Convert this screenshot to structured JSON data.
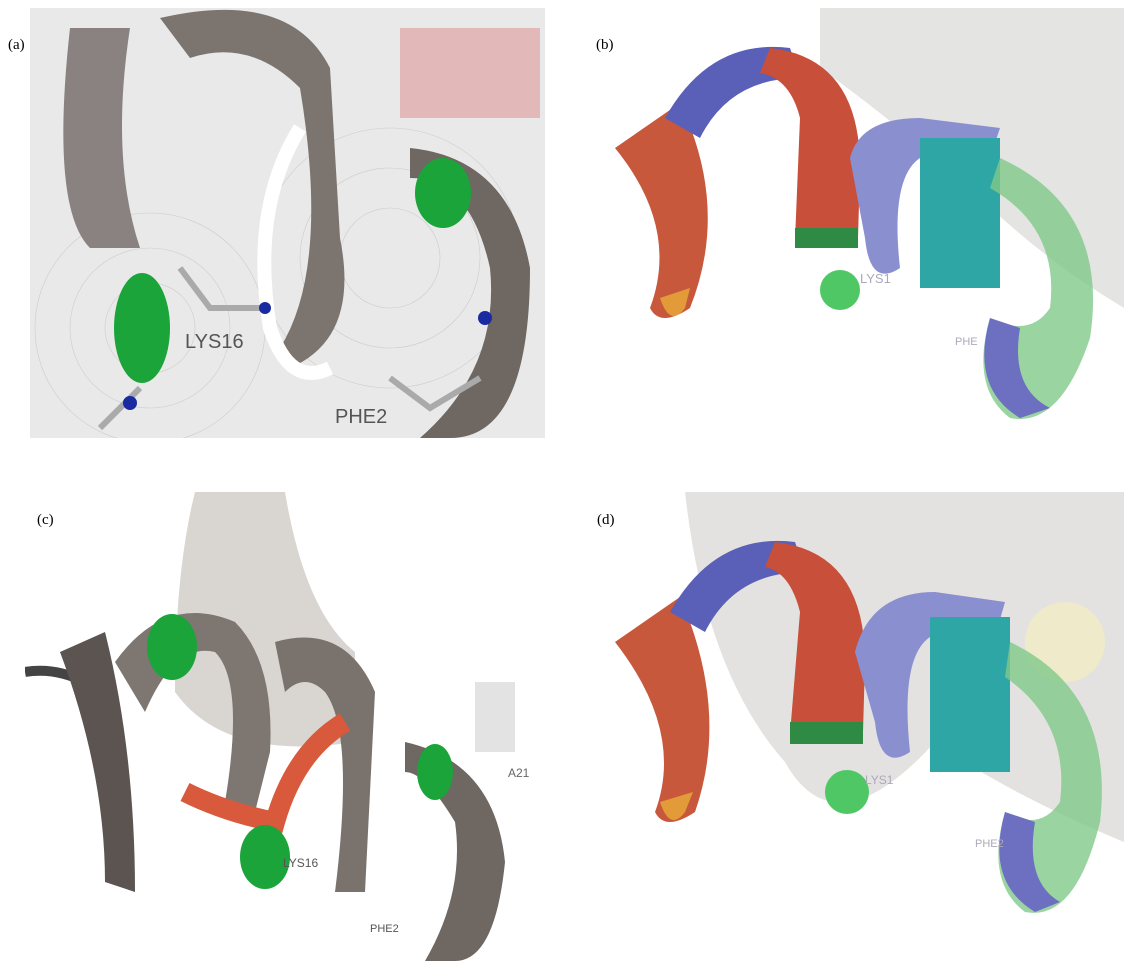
{
  "panels": [
    {
      "label": "(a)",
      "residues": [
        "LYS16",
        "PHE2"
      ]
    },
    {
      "label": "(b)",
      "residues": [
        "LYS1",
        "PHE"
      ]
    },
    {
      "label": "(c)",
      "residues": [
        "LYS16",
        "PHE2",
        "A21"
      ]
    },
    {
      "label": "(d)",
      "residues": [
        "LYS1",
        "PHE2"
      ]
    }
  ]
}
